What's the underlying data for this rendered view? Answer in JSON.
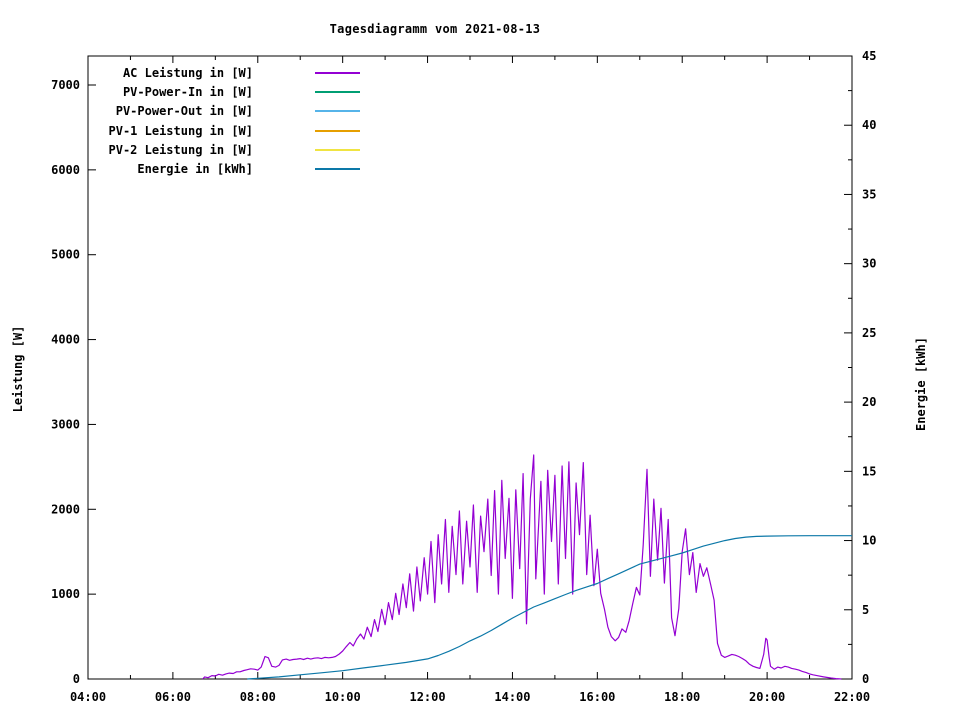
{
  "window": {
    "title": "Tagesdiagramm vom 2021-08-13"
  },
  "colors": {
    "background": "#ffffff",
    "axis": "#000000"
  },
  "chart_data": {
    "type": "line",
    "title": "Tagesdiagramm vom 2021-08-13",
    "legend_position": "top-left-inside",
    "grid": false,
    "x_axis": {
      "label": "",
      "unit": "time",
      "range_hours": [
        4,
        22
      ],
      "major_tick_every_hours": 2,
      "minor_tick_every_hours": 1,
      "tick_labels": [
        "04:00",
        "06:00",
        "08:00",
        "10:00",
        "12:00",
        "14:00",
        "16:00",
        "18:00",
        "20:00",
        "22:00"
      ]
    },
    "y_axis_left": {
      "label": "Leistung [W]",
      "range": [
        0,
        7330
      ],
      "ticks": [
        0,
        1000,
        2000,
        3000,
        4000,
        5000,
        6000,
        7000
      ]
    },
    "y_axis_right": {
      "label": "Energie [kWh]",
      "range": [
        0,
        45
      ],
      "ticks": [
        0,
        5,
        10,
        15,
        20,
        25,
        30,
        35,
        40,
        45
      ],
      "minor_tick_step": 2.5
    },
    "series": [
      {
        "name": "AC Leistung in [W]",
        "color": "#9400D3",
        "axis": "left",
        "points": [
          [
            6.7,
            0
          ],
          [
            6.75,
            25
          ],
          [
            6.83,
            15
          ],
          [
            6.92,
            40
          ],
          [
            7.0,
            35
          ],
          [
            7.08,
            55
          ],
          [
            7.17,
            45
          ],
          [
            7.25,
            60
          ],
          [
            7.33,
            70
          ],
          [
            7.42,
            65
          ],
          [
            7.5,
            85
          ],
          [
            7.58,
            85
          ],
          [
            7.67,
            100
          ],
          [
            7.75,
            110
          ],
          [
            7.83,
            120
          ],
          [
            7.92,
            115
          ],
          [
            8.0,
            105
          ],
          [
            8.08,
            140
          ],
          [
            8.17,
            265
          ],
          [
            8.25,
            250
          ],
          [
            8.33,
            150
          ],
          [
            8.42,
            140
          ],
          [
            8.5,
            160
          ],
          [
            8.58,
            225
          ],
          [
            8.67,
            235
          ],
          [
            8.75,
            220
          ],
          [
            8.83,
            230
          ],
          [
            8.92,
            235
          ],
          [
            9.0,
            240
          ],
          [
            9.08,
            230
          ],
          [
            9.17,
            245
          ],
          [
            9.25,
            235
          ],
          [
            9.33,
            245
          ],
          [
            9.42,
            250
          ],
          [
            9.5,
            240
          ],
          [
            9.58,
            255
          ],
          [
            9.67,
            250
          ],
          [
            9.75,
            255
          ],
          [
            9.83,
            265
          ],
          [
            9.92,
            295
          ],
          [
            10.0,
            330
          ],
          [
            10.08,
            380
          ],
          [
            10.17,
            430
          ],
          [
            10.25,
            390
          ],
          [
            10.33,
            470
          ],
          [
            10.42,
            530
          ],
          [
            10.5,
            470
          ],
          [
            10.58,
            610
          ],
          [
            10.67,
            500
          ],
          [
            10.75,
            700
          ],
          [
            10.83,
            560
          ],
          [
            10.92,
            820
          ],
          [
            11.0,
            640
          ],
          [
            11.08,
            900
          ],
          [
            11.17,
            700
          ],
          [
            11.25,
            1010
          ],
          [
            11.33,
            760
          ],
          [
            11.42,
            1120
          ],
          [
            11.5,
            840
          ],
          [
            11.58,
            1240
          ],
          [
            11.67,
            800
          ],
          [
            11.75,
            1320
          ],
          [
            11.83,
            920
          ],
          [
            11.92,
            1430
          ],
          [
            12.0,
            1000
          ],
          [
            12.08,
            1620
          ],
          [
            12.17,
            900
          ],
          [
            12.25,
            1700
          ],
          [
            12.33,
            1120
          ],
          [
            12.42,
            1880
          ],
          [
            12.5,
            1020
          ],
          [
            12.58,
            1800
          ],
          [
            12.67,
            1230
          ],
          [
            12.75,
            1980
          ],
          [
            12.83,
            1120
          ],
          [
            12.92,
            1860
          ],
          [
            13.0,
            1320
          ],
          [
            13.08,
            2050
          ],
          [
            13.17,
            1020
          ],
          [
            13.25,
            1920
          ],
          [
            13.33,
            1500
          ],
          [
            13.42,
            2120
          ],
          [
            13.5,
            1220
          ],
          [
            13.58,
            2220
          ],
          [
            13.67,
            1000
          ],
          [
            13.75,
            2340
          ],
          [
            13.83,
            1420
          ],
          [
            13.92,
            2130
          ],
          [
            14.0,
            950
          ],
          [
            14.08,
            2230
          ],
          [
            14.17,
            1300
          ],
          [
            14.25,
            2420
          ],
          [
            14.33,
            650
          ],
          [
            14.42,
            2120
          ],
          [
            14.5,
            2640
          ],
          [
            14.55,
            1180
          ],
          [
            14.67,
            2330
          ],
          [
            14.75,
            1000
          ],
          [
            14.83,
            2460
          ],
          [
            14.92,
            1620
          ],
          [
            15.0,
            2400
          ],
          [
            15.08,
            1120
          ],
          [
            15.17,
            2510
          ],
          [
            15.25,
            1420
          ],
          [
            15.33,
            2560
          ],
          [
            15.42,
            1000
          ],
          [
            15.5,
            2310
          ],
          [
            15.58,
            1700
          ],
          [
            15.67,
            2550
          ],
          [
            15.75,
            1230
          ],
          [
            15.83,
            1930
          ],
          [
            15.92,
            1100
          ],
          [
            16.0,
            1530
          ],
          [
            16.08,
            1010
          ],
          [
            16.17,
            820
          ],
          [
            16.25,
            610
          ],
          [
            16.33,
            500
          ],
          [
            16.42,
            450
          ],
          [
            16.5,
            490
          ],
          [
            16.58,
            590
          ],
          [
            16.67,
            550
          ],
          [
            16.75,
            690
          ],
          [
            16.83,
            880
          ],
          [
            16.92,
            1080
          ],
          [
            17.0,
            990
          ],
          [
            17.08,
            1580
          ],
          [
            17.17,
            2470
          ],
          [
            17.25,
            1210
          ],
          [
            17.33,
            2120
          ],
          [
            17.42,
            1400
          ],
          [
            17.5,
            2010
          ],
          [
            17.58,
            1130
          ],
          [
            17.67,
            1880
          ],
          [
            17.75,
            720
          ],
          [
            17.83,
            510
          ],
          [
            17.92,
            830
          ],
          [
            18.0,
            1500
          ],
          [
            18.08,
            1770
          ],
          [
            18.17,
            1230
          ],
          [
            18.25,
            1490
          ],
          [
            18.33,
            1020
          ],
          [
            18.42,
            1360
          ],
          [
            18.5,
            1210
          ],
          [
            18.58,
            1310
          ],
          [
            18.67,
            1110
          ],
          [
            18.75,
            930
          ],
          [
            18.83,
            420
          ],
          [
            18.92,
            280
          ],
          [
            19.0,
            255
          ],
          [
            19.08,
            270
          ],
          [
            19.17,
            290
          ],
          [
            19.25,
            280
          ],
          [
            19.33,
            265
          ],
          [
            19.42,
            240
          ],
          [
            19.5,
            215
          ],
          [
            19.58,
            175
          ],
          [
            19.67,
            150
          ],
          [
            19.75,
            135
          ],
          [
            19.83,
            125
          ],
          [
            19.92,
            290
          ],
          [
            19.97,
            480
          ],
          [
            20.0,
            460
          ],
          [
            20.05,
            250
          ],
          [
            20.08,
            150
          ],
          [
            20.17,
            115
          ],
          [
            20.25,
            140
          ],
          [
            20.33,
            130
          ],
          [
            20.42,
            150
          ],
          [
            20.5,
            140
          ],
          [
            20.58,
            125
          ],
          [
            20.67,
            115
          ],
          [
            20.75,
            105
          ],
          [
            20.83,
            90
          ],
          [
            20.92,
            75
          ],
          [
            21.0,
            60
          ],
          [
            21.08,
            50
          ],
          [
            21.17,
            40
          ],
          [
            21.33,
            25
          ],
          [
            21.5,
            12
          ],
          [
            21.62,
            5
          ],
          [
            21.75,
            0
          ]
        ]
      },
      {
        "name": "PV-Power-In in [W]",
        "color": "#009E73",
        "axis": "left",
        "points": []
      },
      {
        "name": "PV-Power-Out in [W]",
        "color": "#56B4E9",
        "axis": "left",
        "points": []
      },
      {
        "name": "PV-1 Leistung in [W]",
        "color": "#E69F00",
        "axis": "left",
        "points": []
      },
      {
        "name": "PV-2 Leistung in [W]",
        "color": "#F0E442",
        "axis": "left",
        "points": []
      },
      {
        "name": "Energie in [kWh]",
        "color": "#0C78A8",
        "axis": "right",
        "points": [
          [
            7.75,
            0
          ],
          [
            8.0,
            0.05
          ],
          [
            8.5,
            0.15
          ],
          [
            9.0,
            0.3
          ],
          [
            9.5,
            0.45
          ],
          [
            10.0,
            0.6
          ],
          [
            10.5,
            0.8
          ],
          [
            11.0,
            1.0
          ],
          [
            11.5,
            1.2
          ],
          [
            12.0,
            1.45
          ],
          [
            12.25,
            1.7
          ],
          [
            12.5,
            2.0
          ],
          [
            12.75,
            2.35
          ],
          [
            13.0,
            2.75
          ],
          [
            13.25,
            3.1
          ],
          [
            13.5,
            3.5
          ],
          [
            13.75,
            3.95
          ],
          [
            14.0,
            4.4
          ],
          [
            14.25,
            4.8
          ],
          [
            14.5,
            5.2
          ],
          [
            14.75,
            5.5
          ],
          [
            15.0,
            5.8
          ],
          [
            15.25,
            6.1
          ],
          [
            15.5,
            6.4
          ],
          [
            15.75,
            6.65
          ],
          [
            16.0,
            6.9
          ],
          [
            16.25,
            7.25
          ],
          [
            16.5,
            7.6
          ],
          [
            16.75,
            7.95
          ],
          [
            17.0,
            8.3
          ],
          [
            17.25,
            8.5
          ],
          [
            17.5,
            8.7
          ],
          [
            17.75,
            8.9
          ],
          [
            18.0,
            9.1
          ],
          [
            18.25,
            9.35
          ],
          [
            18.5,
            9.6
          ],
          [
            18.75,
            9.8
          ],
          [
            19.0,
            10.0
          ],
          [
            19.25,
            10.15
          ],
          [
            19.5,
            10.25
          ],
          [
            19.75,
            10.3
          ],
          [
            20.0,
            10.32
          ],
          [
            20.5,
            10.34
          ],
          [
            21.0,
            10.35
          ],
          [
            21.5,
            10.35
          ],
          [
            22.0,
            10.35
          ]
        ]
      }
    ]
  }
}
